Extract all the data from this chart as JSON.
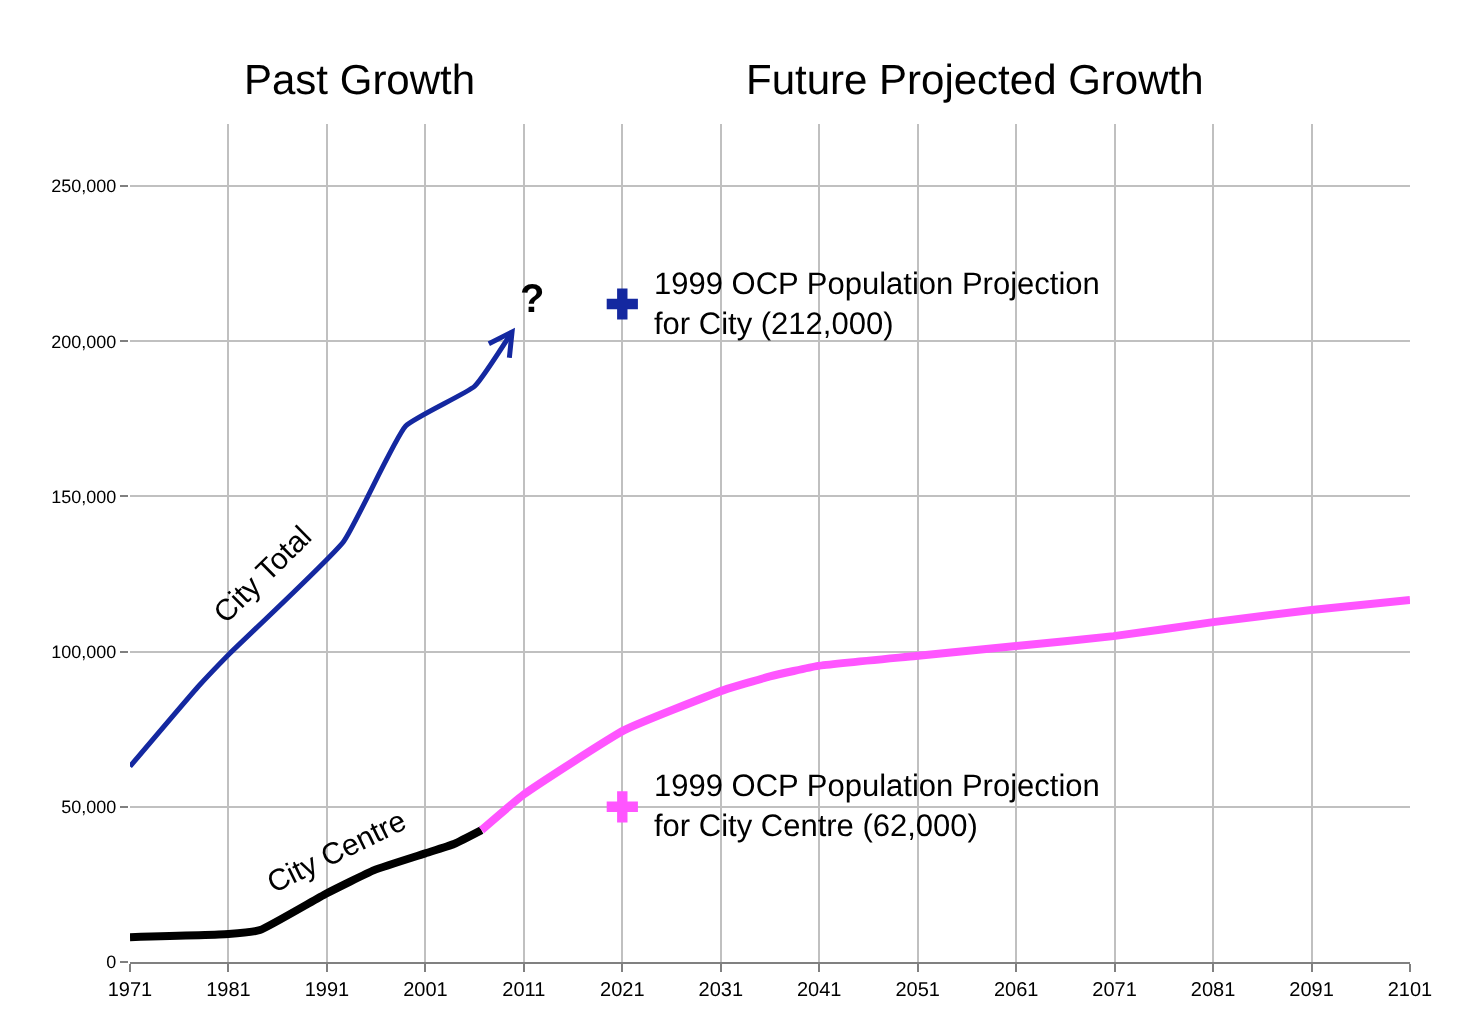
{
  "chart_data": {
    "type": "line",
    "xlim": [
      1971,
      2101
    ],
    "ylim": [
      0,
      270000
    ],
    "xticks": [
      1971,
      1981,
      1991,
      2001,
      2011,
      2021,
      2031,
      2041,
      2051,
      2061,
      2071,
      2081,
      2091,
      2101
    ],
    "yticks": [
      {
        "value": 0,
        "label": "0"
      },
      {
        "value": 50000,
        "label": "50,000"
      },
      {
        "value": 100000,
        "label": "100,000"
      },
      {
        "value": 150000,
        "label": "150,000"
      },
      {
        "value": 200000,
        "label": "200,000"
      },
      {
        "value": 250000,
        "label": "250,000"
      }
    ],
    "grid": true,
    "legend": false,
    "line_style": "solid",
    "series": [
      {
        "name": "City Total",
        "color": "#1428a0",
        "x": [
          1971,
          1978,
          1981,
          1992.7,
          1999,
          2006,
          2009.8
        ],
        "values": [
          63000,
          89000,
          99000,
          135500,
          172700,
          185500,
          203000
        ]
      },
      {
        "name": "City Centre",
        "color": "#000000",
        "x": [
          1971,
          1981,
          1984.2,
          1990.9,
          1995.8,
          2001,
          2003.9,
          2006.7
        ],
        "values": [
          8000,
          9000,
          10300,
          22000,
          29600,
          35000,
          38000,
          42500
        ]
      },
      {
        "color": "#ff55ff",
        "x": [
          2006.7,
          2011,
          2021.2,
          2031.3,
          2036,
          2040.9,
          2050.8,
          2061,
          2070.9,
          2081,
          2091,
          2101
        ],
        "values": [
          42500,
          54000,
          74700,
          87600,
          92000,
          95400,
          98600,
          101800,
          105000,
          109500,
          113400,
          116600
        ]
      },
      {
        "type": "scatter",
        "marker": "cross",
        "color": "#1428a0",
        "x": [
          2021
        ],
        "values": [
          212000
        ]
      },
      {
        "type": "scatter",
        "marker": "cross",
        "color": "#ff55ff",
        "x": [
          2021
        ],
        "values": [
          50000
        ]
      }
    ],
    "annotations": [
      "Past Growth",
      "Future Projected Growth",
      "?",
      "1999 OCP Population Projection\nfor City (212,000)",
      "1999 OCP Population Projection\nfor City Centre (62,000)"
    ]
  }
}
